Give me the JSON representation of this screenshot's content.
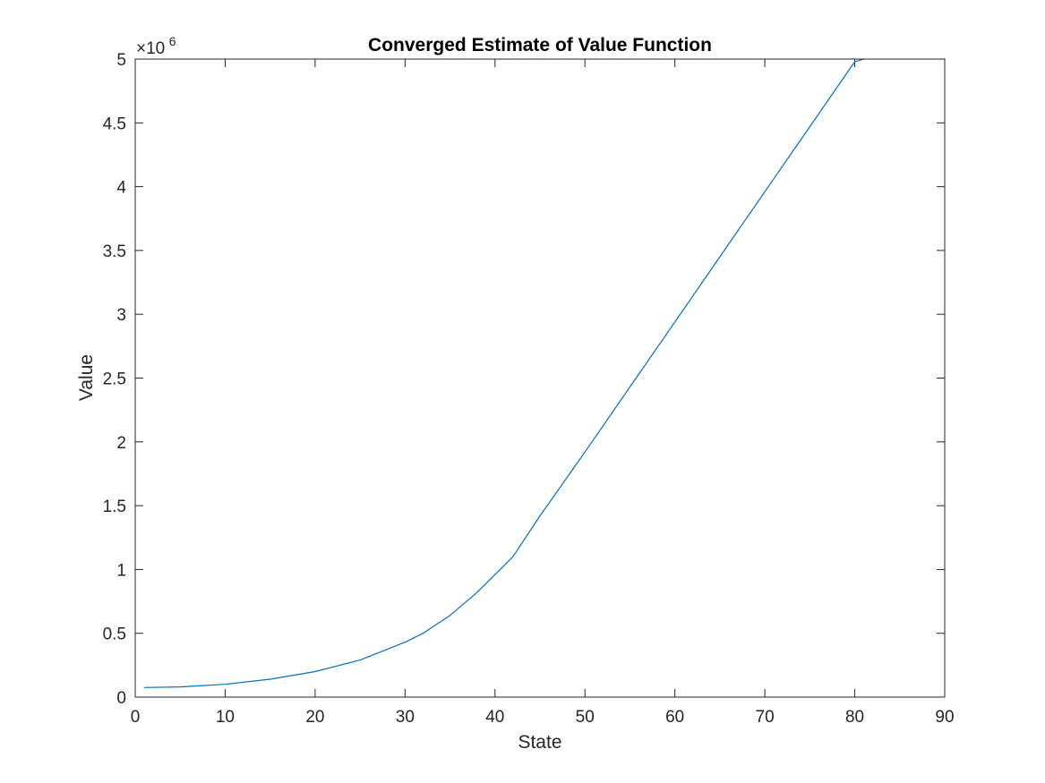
{
  "chart_data": {
    "type": "line",
    "title": "Converged Estimate of Value Function",
    "xlabel": "State",
    "ylabel": "Value",
    "xlim": [
      0,
      90
    ],
    "ylim": [
      0,
      5
    ],
    "y_scale_exponent_label": "×10",
    "y_scale_exponent": "6",
    "xticks": [
      0,
      10,
      20,
      30,
      40,
      50,
      60,
      70,
      80,
      90
    ],
    "xtick_labels": [
      "0",
      "10",
      "20",
      "30",
      "40",
      "50",
      "60",
      "70",
      "80",
      "90"
    ],
    "yticks": [
      0,
      0.5,
      1,
      1.5,
      2,
      2.5,
      3,
      3.5,
      4,
      4.5,
      5
    ],
    "ytick_labels": [
      "0",
      "0.5",
      "1",
      "1.5",
      "2",
      "2.5",
      "3",
      "3.5",
      "4",
      "4.5",
      "5"
    ],
    "grid": false,
    "colors": {
      "line": "#0072BD",
      "axis": "#262626"
    },
    "series": [
      {
        "x": [
          1,
          5,
          10,
          15,
          20,
          25,
          30,
          32,
          35,
          38,
          40,
          42,
          45,
          50,
          55,
          60,
          65,
          70,
          75,
          80,
          81
        ],
        "y": [
          0.075,
          0.08,
          0.1,
          0.14,
          0.2,
          0.29,
          0.43,
          0.5,
          0.64,
          0.82,
          0.96,
          1.1,
          1.42,
          1.92,
          2.43,
          2.94,
          3.45,
          3.96,
          4.47,
          4.98,
          5.0
        ]
      }
    ]
  }
}
